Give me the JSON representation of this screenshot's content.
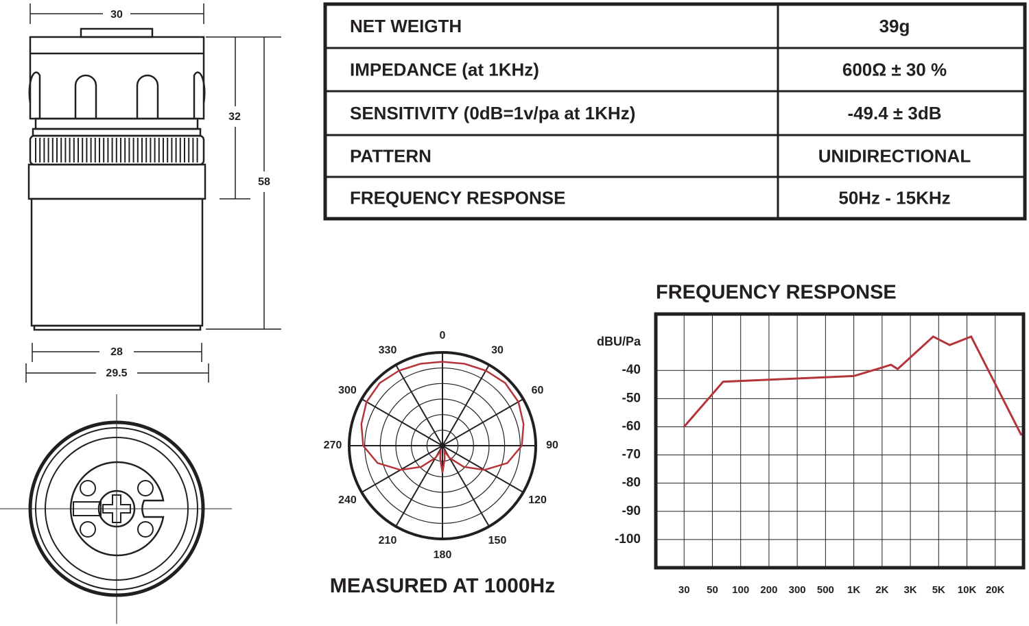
{
  "dimensions": {
    "top_width": "30",
    "upper_height": "32",
    "total_height": "58",
    "base_width": "28",
    "base_outer_width": "29.5"
  },
  "table": {
    "rows": [
      [
        "NET WEIGTH",
        "39g"
      ],
      [
        "IMPEDANCE (at 1KHz)",
        "600Ω ± 30 %"
      ],
      [
        "SENSITIVITY (0dB=1v/pa at 1KHz)",
        "-49.4 ± 3dB"
      ],
      [
        "PATTERN",
        "UNIDIRECTIONAL"
      ],
      [
        "FREQUENCY RESPONSE",
        "50Hz - 15KHz"
      ]
    ]
  },
  "chart_data": [
    {
      "type": "polar",
      "caption": "MEASURED AT 1000Hz",
      "theta_ticks": [
        0,
        30,
        60,
        90,
        120,
        150,
        180,
        210,
        240,
        270,
        300,
        330
      ],
      "rlim": [
        0,
        1
      ],
      "rings": 6,
      "color": "#b5343a",
      "x": [
        0,
        15,
        30,
        45,
        60,
        75,
        90,
        105,
        120,
        135,
        150,
        160,
        170,
        180,
        190,
        200,
        210,
        225,
        240,
        255,
        270,
        285,
        300,
        315,
        330,
        345
      ],
      "values": [
        0.9,
        0.91,
        0.93,
        0.95,
        0.94,
        0.9,
        0.85,
        0.72,
        0.52,
        0.32,
        0.15,
        0.06,
        0.14,
        0.29,
        0.14,
        0.06,
        0.15,
        0.32,
        0.52,
        0.72,
        0.85,
        0.9,
        0.94,
        0.95,
        0.93,
        0.91
      ]
    },
    {
      "type": "line",
      "title": "FREQUENCY RESPONSE",
      "y_label": "dBU/Pa",
      "color": "#b5343a",
      "grid": true,
      "ylim": [
        -110,
        -20
      ],
      "yticks": [
        -40,
        -50,
        -60,
        -70,
        -80,
        -90,
        -100
      ],
      "xticks": [
        30,
        50,
        100,
        200,
        300,
        500,
        {
          "value": 1000,
          "label": "1K"
        },
        {
          "value": 2000,
          "label": "2K"
        },
        {
          "value": 3000,
          "label": "3K"
        },
        {
          "value": 5000,
          "label": "5K"
        },
        {
          "value": 10000,
          "label": "10K"
        },
        {
          "value": 20000,
          "label": "20K"
        }
      ],
      "x": [
        30,
        65,
        1000,
        2000,
        2270,
        2500,
        4530,
        6550,
        11100,
        38000
      ],
      "values": [
        -60,
        -44,
        -42,
        -39,
        -38,
        -39.5,
        -28,
        -31,
        -28,
        -63
      ]
    }
  ]
}
